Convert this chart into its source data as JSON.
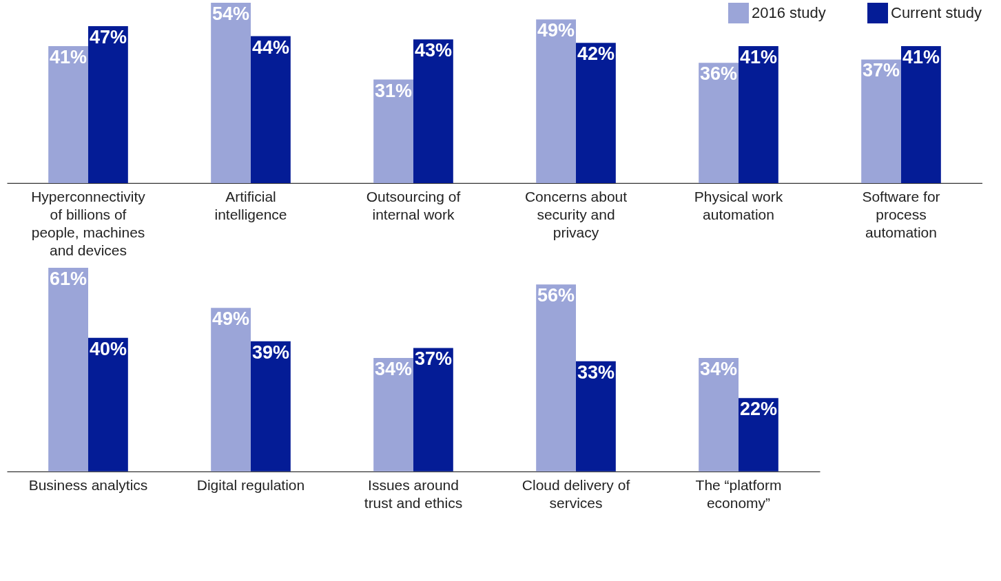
{
  "chart_data": [
    {
      "type": "bar",
      "categories": [
        "Hyperconnectivity of billions of people, machines and devices",
        "Artificial intelligence",
        "Outsourcing of internal work",
        "Concerns about security and privacy",
        "Physical work automation",
        "Software for process automation"
      ],
      "series": [
        {
          "name": "2016 study",
          "color": "#9ba5d8",
          "values": [
            41,
            54,
            31,
            49,
            36,
            37
          ],
          "value_labels": [
            "41%",
            "54%",
            "31%",
            "49%",
            "36%",
            "37%"
          ]
        },
        {
          "name": "Current study",
          "color": "#041c96",
          "values": [
            47,
            44,
            43,
            42,
            41,
            41
          ],
          "value_labels": [
            "47%",
            "44%",
            "43%",
            "42%",
            "41%",
            "41%"
          ]
        }
      ],
      "tick_labels": "x",
      "legend": "top right"
    },
    {
      "type": "bar",
      "categories": [
        "Business analytics",
        "Digital regulation",
        "Issues around trust and ethics",
        "Cloud delivery of services",
        "The “platform economy”"
      ],
      "series": [
        {
          "color": "#9ba5d8",
          "values": [
            61,
            49,
            34,
            56,
            34
          ],
          "value_labels": [
            "61%",
            "49%",
            "34%",
            "56%",
            "34%"
          ]
        },
        {
          "color": "#041c96",
          "values": [
            40,
            39,
            37,
            33,
            22
          ],
          "value_labels": [
            "40%",
            "39%",
            "37%",
            "33%",
            "22%"
          ]
        }
      ],
      "tick_labels": "x"
    }
  ]
}
